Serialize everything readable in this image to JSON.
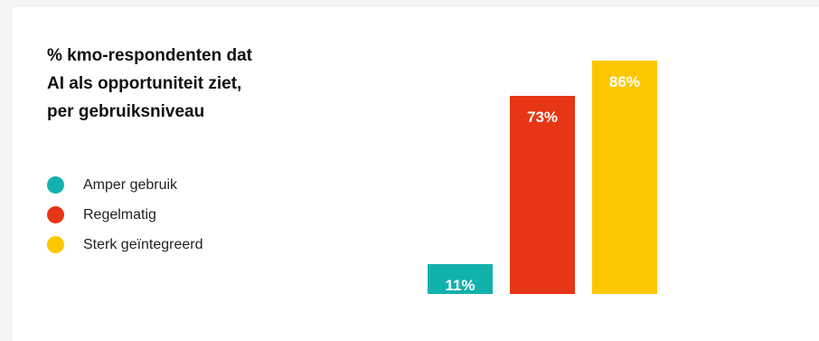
{
  "chart_data": {
    "type": "bar",
    "title": "% kmo-respondenten dat\nAI als opportuniteit ziet,\nper gebruiksniveau",
    "categories": [
      "Amper gebruik",
      "Regelmatig",
      "Sterk geïntegreerd"
    ],
    "values": [
      11,
      73,
      86
    ],
    "value_labels": [
      "11%",
      "73%",
      "86%"
    ],
    "colors": [
      "#13b1ae",
      "#e63616",
      "#fdc700"
    ],
    "xlabel": "",
    "ylabel": "",
    "ylim": [
      0,
      100
    ],
    "grid": false,
    "legend": "left"
  }
}
